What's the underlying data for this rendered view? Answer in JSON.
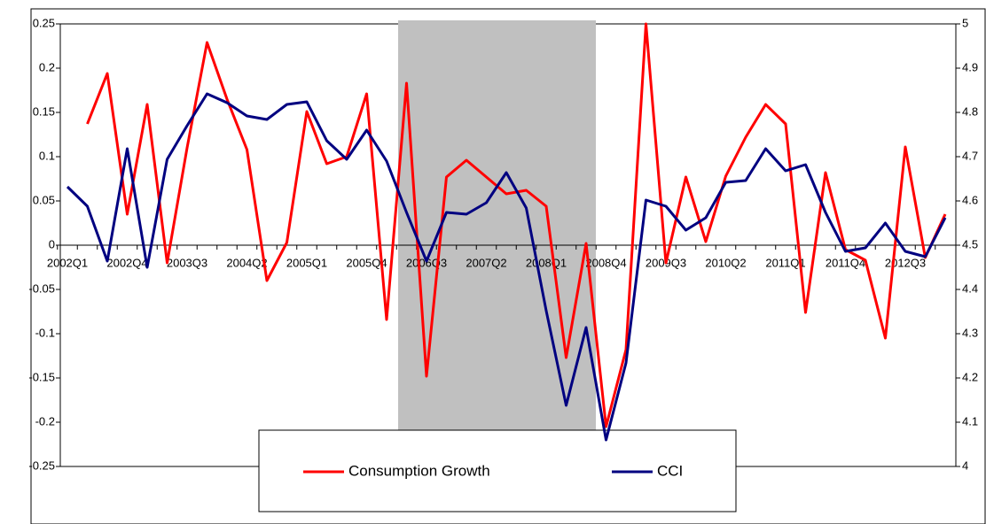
{
  "chart_data": {
    "type": "line",
    "categories": [
      "2002Q1",
      null,
      null,
      "2002Q4",
      null,
      null,
      "2003Q3",
      null,
      null,
      "2004Q2",
      null,
      null,
      "2005Q1",
      null,
      null,
      "2005Q4",
      null,
      null,
      "2006Q3",
      null,
      null,
      "2007Q2",
      null,
      null,
      "2008Q1",
      null,
      null,
      "2008Q4",
      null,
      null,
      "2009Q3",
      null,
      null,
      "2010Q2",
      null,
      null,
      "2011Q1",
      null,
      null,
      "2011Q4",
      null,
      null,
      "2012Q3",
      null,
      null
    ],
    "series": [
      {
        "name": "Consumption Growth",
        "color": "#ff0000",
        "values": [
          null,
          0.137,
          0.194,
          0.035,
          0.159,
          -0.02,
          0.11,
          0.229,
          0.165,
          0.108,
          -0.04,
          0.003,
          0.151,
          0.092,
          0.1,
          0.171,
          -0.084,
          0.183,
          -0.148,
          0.077,
          0.096,
          0.077,
          0.058,
          0.062,
          0.044,
          -0.127,
          0.002,
          -0.205,
          -0.118,
          0.25,
          -0.02,
          0.077,
          0.004,
          0.078,
          0.122,
          0.159,
          0.137,
          -0.076,
          0.082,
          -0.005,
          -0.017,
          -0.105,
          0.111,
          -0.014,
          0.035
        ]
      },
      {
        "name": "CCI",
        "color": "#000080",
        "axis": "y2",
        "values": [
          4.632,
          4.588,
          4.464,
          4.718,
          4.45,
          4.694,
          4.77,
          4.842,
          4.822,
          4.792,
          4.784,
          4.818,
          4.824,
          4.736,
          4.694,
          4.76,
          4.69,
          4.574,
          4.464,
          4.574,
          4.57,
          4.596,
          4.664,
          4.584,
          4.352,
          4.138,
          4.314,
          4.06,
          4.234,
          4.602,
          4.588,
          4.534,
          4.562,
          4.642,
          4.646,
          4.718,
          4.668,
          4.682,
          4.574,
          4.486,
          4.494,
          4.55,
          4.486,
          4.474,
          4.562
        ]
      }
    ],
    "ylim": [
      -0.25,
      0.25
    ],
    "yticks": [
      0.25,
      0.2,
      0.15,
      0.1,
      0.05,
      0,
      -0.05,
      -0.1,
      -0.15,
      -0.2,
      -0.25
    ],
    "y2lim": [
      4,
      5
    ],
    "y2ticks": [
      5,
      4.9,
      4.8,
      4.7,
      4.6,
      4.5,
      4.4,
      4.3,
      4.2,
      4.1,
      4
    ],
    "legend": "bottom"
  }
}
